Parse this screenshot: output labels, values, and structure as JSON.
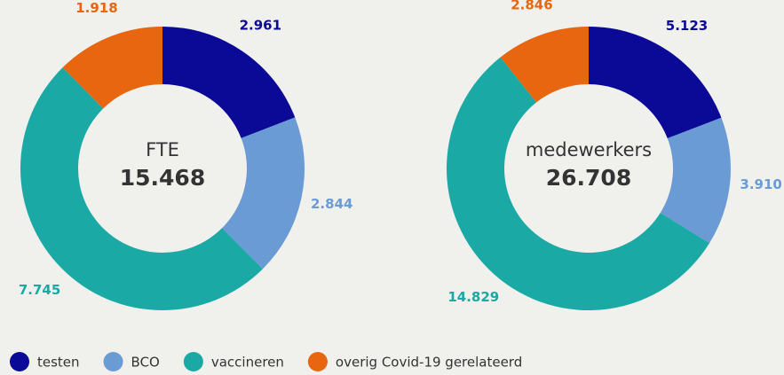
{
  "chart_data": [
    {
      "type": "donut",
      "center_label": "FTE",
      "center_value": "15.468",
      "categories": [
        "testen",
        "BCO",
        "vaccineren",
        "overig Covid-19 gerelateerd"
      ],
      "values": [
        2961,
        2844,
        7745,
        1918
      ],
      "value_labels": [
        "2.961",
        "2.844",
        "7.745",
        "1.918"
      ],
      "colors": [
        "#0a0a96",
        "#6b9bd4",
        "#1aa9a5",
        "#e8660f"
      ]
    },
    {
      "type": "donut",
      "center_label": "medewerkers",
      "center_value": "26.708",
      "categories": [
        "testen",
        "BCO",
        "vaccineren",
        "overig Covid-19 gerelateerd"
      ],
      "values": [
        5123,
        3910,
        14829,
        2846
      ],
      "value_labels": [
        "5.123",
        "3.910",
        "14.829",
        "2.846"
      ],
      "colors": [
        "#0a0a96",
        "#6b9bd4",
        "#1aa9a5",
        "#e8660f"
      ]
    }
  ]
}
